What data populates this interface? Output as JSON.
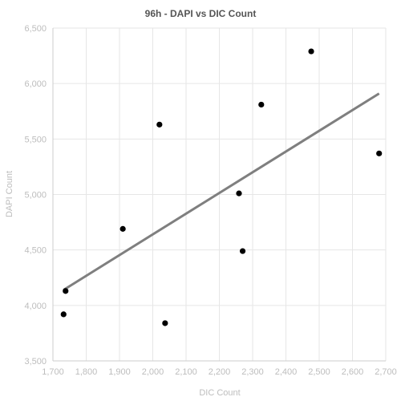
{
  "chart_data": {
    "type": "scatter",
    "title": "96h - DAPI vs DIC Count",
    "xlabel": "DIC Count",
    "ylabel": "DAPI Count",
    "xlim": [
      1700,
      2700
    ],
    "ylim": [
      3500,
      6500
    ],
    "x_ticks": [
      1700,
      1800,
      1900,
      2000,
      2100,
      2200,
      2300,
      2400,
      2500,
      2600,
      2700
    ],
    "y_ticks": [
      3500,
      4000,
      4500,
      5000,
      5500,
      6000,
      6500
    ],
    "x_tick_labels": [
      "1,700",
      "1,800",
      "1,900",
      "2,000",
      "2,100",
      "2,200",
      "2,300",
      "2,400",
      "2,500",
      "2,600",
      "2,700"
    ],
    "y_tick_labels": [
      "3,500",
      "4,000",
      "4,500",
      "5,000",
      "5,500",
      "6,000",
      "6,500"
    ],
    "grid": true,
    "legend": "none",
    "points": [
      {
        "x": 1732,
        "y": 3920
      },
      {
        "x": 1738,
        "y": 4130
      },
      {
        "x": 1910,
        "y": 4690
      },
      {
        "x": 2020,
        "y": 5630
      },
      {
        "x": 2037,
        "y": 3840
      },
      {
        "x": 2259,
        "y": 5010
      },
      {
        "x": 2270,
        "y": 4490
      },
      {
        "x": 2326,
        "y": 5810
      },
      {
        "x": 2476,
        "y": 6290
      },
      {
        "x": 2680,
        "y": 5370
      }
    ],
    "trendline": {
      "type": "linear",
      "x": [
        1732,
        2680
      ],
      "y": [
        4140,
        5910
      ]
    },
    "colors": {
      "points": "#000000",
      "trendline": "#7f7f7f",
      "grid": "#e6e6e6",
      "axis": "#cccccc",
      "text": "#bdbdbd",
      "title": "#555555"
    }
  }
}
